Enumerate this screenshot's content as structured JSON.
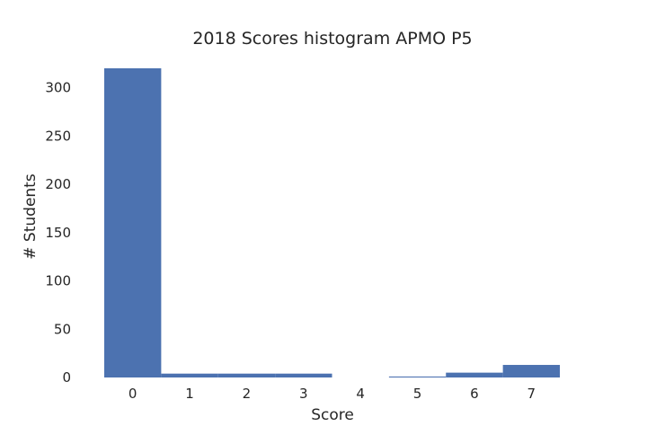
{
  "chart_data": {
    "type": "bar",
    "title": "2018 Scores histogram APMO P5",
    "xlabel": "Score",
    "ylabel": "# Students",
    "categories": [
      "0",
      "1",
      "2",
      "3",
      "4",
      "5",
      "6",
      "7"
    ],
    "values": [
      320,
      4,
      4,
      4,
      0,
      1,
      5,
      13
    ],
    "ylim": [
      0,
      320
    ],
    "yticks": [
      "0",
      "50",
      "100",
      "150",
      "200",
      "250",
      "300"
    ],
    "grid": false,
    "bar_color": "#4c72b0",
    "background_color": "#ffffff"
  }
}
